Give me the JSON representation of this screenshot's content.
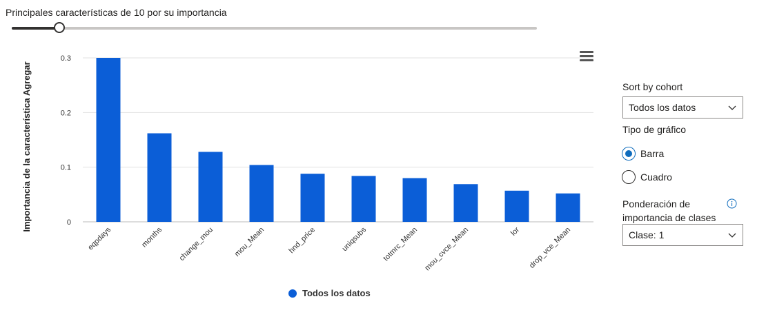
{
  "controls": {
    "top_features_label": "Principales características de 10 por su importancia",
    "slider_value": 10,
    "slider_min": 1,
    "slider_max": 100
  },
  "sidebar": {
    "sort_label": "Sort by cohort",
    "sort_value": "Todos los datos",
    "chart_type_label": "Tipo de gráfico",
    "chart_types": [
      "Barra",
      "Cuadro"
    ],
    "chart_type_selected": "Barra",
    "class_weight_label_line1": "Ponderación de",
    "class_weight_label_line2": "importancia de clases",
    "class_weight_value": "Clase: 1"
  },
  "legend": {
    "label": "Todos los datos"
  },
  "colors": {
    "bar": "#0b5ed7",
    "accent": "#0f6cbd",
    "grid": "#e1e1e1",
    "axis": "#333333"
  },
  "chart_data": {
    "type": "bar",
    "categories": [
      "eqpdays",
      "months",
      "change_mou",
      "mou_Mean",
      "hnd_price",
      "uniqsubs",
      "totmrc_Mean",
      "mou_cvce_Mean",
      "lor",
      "drop_vce_Mean"
    ],
    "series": [
      {
        "name": "Todos los datos",
        "values": [
          0.3,
          0.162,
          0.128,
          0.104,
          0.088,
          0.084,
          0.08,
          0.069,
          0.057,
          0.052
        ]
      }
    ],
    "ylabel": "Importancia de la característica Agregar",
    "xlabel": "",
    "ylim": [
      0,
      0.3
    ],
    "yticks": [
      "0",
      "0.1",
      "0.2",
      "0.3"
    ],
    "grid": true,
    "legend": "bottom"
  }
}
